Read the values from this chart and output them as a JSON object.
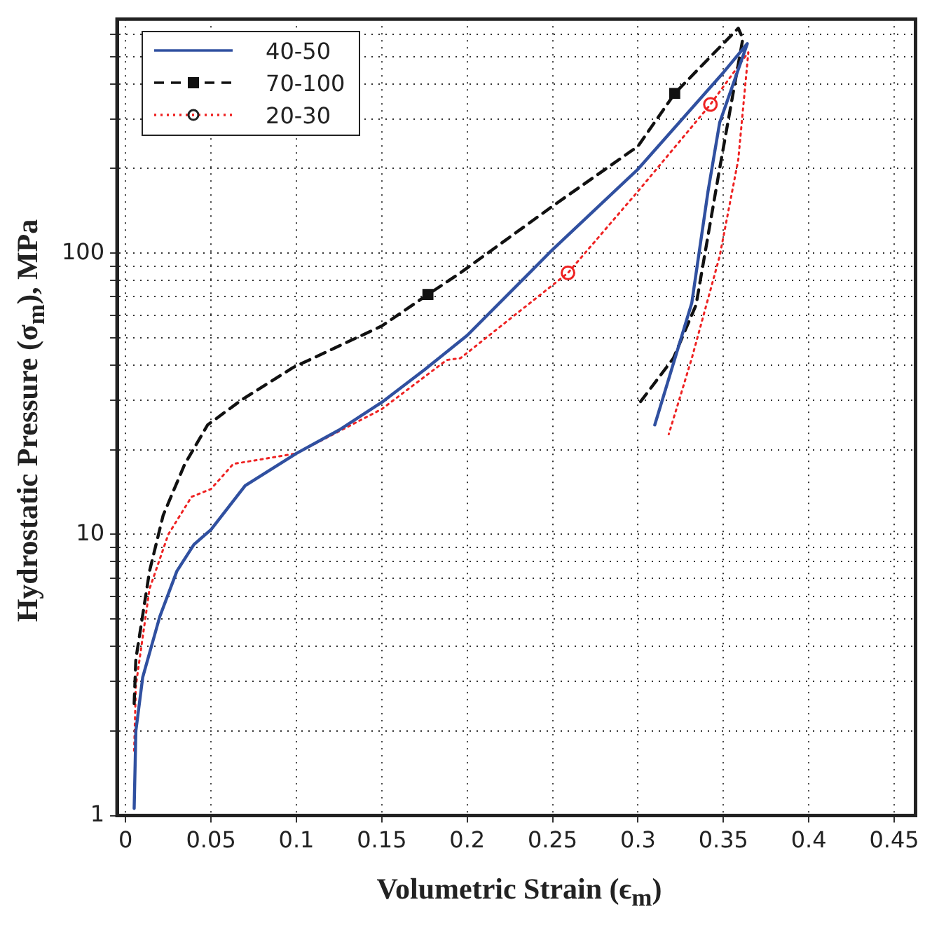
{
  "chart_data": {
    "type": "line",
    "xlabel": "Volumetric Strain (ϵ$_{m}$)",
    "ylabel": "Hydrostatic Pressure (σ$_{m}$), MPa",
    "xlim": [
      -0.005,
      0.4625
    ],
    "xticks": [
      0,
      0.05,
      0.1,
      0.15,
      0.2,
      0.25,
      0.3,
      0.35,
      0.4,
      0.45
    ],
    "ylim": [
      1,
      680
    ],
    "yticks": [
      1,
      {
        "value": 2,
        "label": null
      },
      {
        "value": 3,
        "label": null
      },
      {
        "value": 4,
        "label": null
      },
      {
        "value": 5,
        "label": null
      },
      {
        "value": 6,
        "label": null
      },
      {
        "value": 7,
        "label": null
      },
      {
        "value": 8,
        "label": null
      },
      {
        "value": 9,
        "label": null
      },
      10,
      {
        "value": 20,
        "label": null
      },
      {
        "value": 30,
        "label": null
      },
      {
        "value": 40,
        "label": null
      },
      {
        "value": 50,
        "label": null
      },
      {
        "value": 60,
        "label": null
      },
      {
        "value": 70,
        "label": null
      },
      {
        "value": 80,
        "label": null
      },
      {
        "value": 90,
        "label": null
      },
      100,
      {
        "value": 200,
        "label": null
      },
      {
        "value": 300,
        "label": null
      },
      {
        "value": 400,
        "label": null
      },
      {
        "value": 500,
        "label": null
      },
      {
        "value": 600,
        "label": null
      }
    ],
    "log": "y",
    "grid": true,
    "legend": "top left",
    "series": [
      {
        "name": "40-50",
        "type": "line",
        "color": "#3050a0",
        "line_style": "solid",
        "x": [
          0.005,
          0.006,
          0.01,
          0.02,
          0.03,
          0.04,
          0.05,
          0.07,
          0.1,
          0.125,
          0.15,
          0.175,
          0.2,
          0.25,
          0.3,
          0.35,
          0.364,
          0.3478,
          0.341,
          0.3315,
          0.3098
        ],
        "values": [
          1.06,
          2.0,
          3.1,
          5.1,
          7.4,
          9.2,
          10.4,
          14.9,
          19.4,
          23.5,
          29.5,
          38.5,
          51,
          103,
          199,
          439,
          556,
          291,
          166,
          66.6,
          24.5
        ]
      },
      {
        "name": "70-100",
        "type": "line",
        "color": "#111111",
        "line_style": "dashed",
        "x": [
          0.005,
          0.006,
          0.014,
          0.022,
          0.0345,
          0.048,
          0.068,
          0.098,
          0.15,
          0.177,
          0.196,
          0.25,
          0.3,
          0.3215,
          0.3587,
          0.3614,
          0.3478,
          0.334,
          0.3207,
          0.3003
        ],
        "values": [
          2.5,
          3.6,
          7.4,
          11.7,
          17.7,
          24.5,
          30.1,
          39.2,
          55.1,
          71.3,
          85.1,
          147,
          240,
          370,
          631,
          580,
          200,
          65.5,
          42.3,
          29.0
        ]
      },
      {
        "name": "20-30",
        "type": "line",
        "color": "#ee2222",
        "line_style": "dotted",
        "x": [
          0.005,
          0.006,
          0.014,
          0.025,
          0.0386,
          0.05,
          0.063,
          0.1,
          0.15,
          0.188,
          0.196,
          0.259,
          0.3,
          0.3424,
          0.3646,
          0.3587,
          0.3478,
          0.3315,
          0.318
        ],
        "values": [
          1.7,
          2.9,
          6.4,
          10,
          13.6,
          14.5,
          17.8,
          19.4,
          27.9,
          41.7,
          42.3,
          85.1,
          166,
          338,
          518,
          215,
          97.5,
          42.3,
          22.7
        ]
      },
      {
        "type": "scatter",
        "color": "#111111",
        "marker": "square",
        "x": [
          0.177,
          0.3215
        ],
        "values": [
          71.3,
          370
        ]
      },
      {
        "type": "scatter",
        "color": "#ee2222",
        "marker": "circle",
        "x": [
          0.259,
          0.3424
        ],
        "values": [
          85.1,
          338
        ]
      }
    ]
  }
}
